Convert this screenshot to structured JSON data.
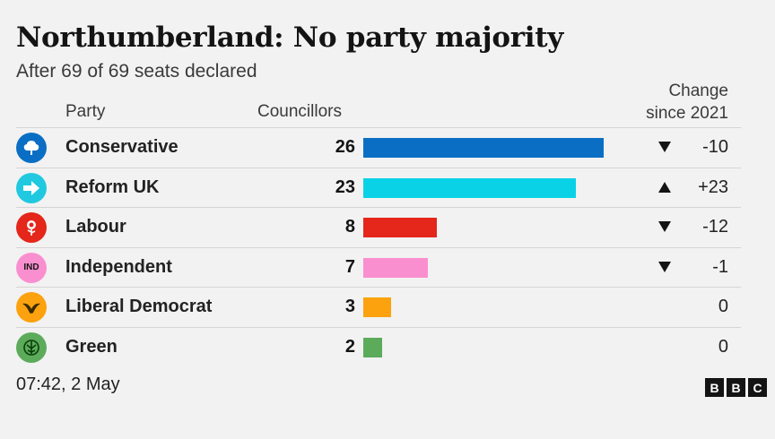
{
  "header": {
    "title": "Northumberland: No party majority",
    "subtitle": "After 69 of 69 seats declared"
  },
  "columns": {
    "party": "Party",
    "councillors": "Councillors",
    "change_line1": "Change",
    "change_line2": "since 2021"
  },
  "chart_data": {
    "type": "bar",
    "title": "Northumberland: No party majority",
    "subtitle": "After 69 of 69 seats declared",
    "categories": [
      "Conservative",
      "Reform UK",
      "Labour",
      "Independent",
      "Liberal Democrat",
      "Green"
    ],
    "series": [
      {
        "name": "Councillors",
        "values": [
          26,
          23,
          8,
          7,
          3,
          2
        ]
      }
    ],
    "change_since_2021": [
      "-10",
      "+23",
      "-12",
      "-1",
      "0",
      "0"
    ],
    "change_direction": [
      "down",
      "up",
      "down",
      "down",
      "none",
      "none"
    ],
    "colors": [
      "#0a6fc4",
      "#0ad2e6",
      "#e4261b",
      "#fa8fcf",
      "#fca20e",
      "#5bab5b"
    ],
    "logo_colors": [
      "#0a6fc4",
      "#20c9e0",
      "#e4261b",
      "#fa8fcf",
      "#fca20e",
      "#5bab5b"
    ],
    "icons": [
      "conservative-tree-icon",
      "reform-arrow-icon",
      "labour-rose-icon",
      "independent-ind-icon",
      "libdem-bird-icon",
      "green-tree-icon"
    ],
    "logo_text": [
      "",
      "",
      "",
      "IND",
      "",
      ""
    ],
    "xlim": [
      0,
      26
    ]
  },
  "footer": {
    "timestamp": "07:42,  2 May",
    "brand": [
      "B",
      "B",
      "C"
    ]
  }
}
